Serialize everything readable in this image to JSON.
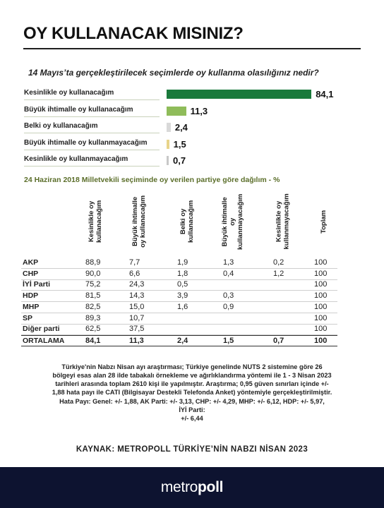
{
  "header": {
    "title": "OY KULLANACAK MISINIZ?",
    "question": "14 Mayıs’ta gerçekleştirilecek seçimlerde oy kullanma olasılığınız nedir?",
    "table_subtitle": "24 Haziran 2018 Milletvekili seçiminde oy verilen partiye göre dağılım - %"
  },
  "chart_data": [
    {
      "type": "bar",
      "orientation": "horizontal",
      "title": "14 Mayıs’ta gerçekleştirilecek seçimlerde oy kullanma olasılığınız nedir?",
      "categories": [
        "Kesinlikle oy kullanacağım",
        "Büyük ihtimalle oy kullanacağım",
        "Belki oy kullanacağım",
        "Büyük ihtimalle oy kullanmayacağım",
        "Kesinlikle oy kullanmayacağım"
      ],
      "values": [
        84.1,
        11.3,
        2.4,
        1.5,
        0.7
      ],
      "value_labels": [
        "84,1",
        "11,3",
        "2,4",
        "1,5",
        "0,7"
      ],
      "colors": [
        "#1a7a3c",
        "#8fbc5a",
        "#d9d9d9",
        "#e8d48a",
        "#c8c8c8"
      ],
      "xlim": [
        0,
        100
      ],
      "grid": false,
      "legend": "none"
    },
    {
      "type": "table",
      "title": "24 Haziran 2018 Milletvekili seçiminde oy verilen partiye göre dağılım - %",
      "columns": [
        "Kesinlikle oy kullanacağım",
        "Büyük ihtimalle oy kullanacağım",
        "Belki oy kullanacağım",
        "Büyük ihtimalle oy kullanmayacağım",
        "Kesinlikle oy kullanmayacağım",
        "Toplam"
      ],
      "column_headers": [
        [
          "Kesinlikle oy",
          "kullanacağım"
        ],
        [
          "Büyük ihtimalle",
          "oy kullanacağım"
        ],
        [
          "Belki oy",
          "kullanacağım"
        ],
        [
          "Büyük ihtimalle",
          "oy",
          "kullanmayacağım"
        ],
        [
          "Kesinlikle oy",
          "kullanmayacağım"
        ],
        [
          "Toplam"
        ]
      ],
      "rows": [
        {
          "party": "AKP",
          "values": [
            "88,9",
            "7,7",
            "1,9",
            "1,3",
            "0,2",
            "100"
          ]
        },
        {
          "party": "CHP",
          "values": [
            "90,0",
            "6,6",
            "1,8",
            "0,4",
            "1,2",
            "100"
          ]
        },
        {
          "party": "İYİ Parti",
          "values": [
            "75,2",
            "24,3",
            "0,5",
            "",
            "",
            "100"
          ]
        },
        {
          "party": "HDP",
          "values": [
            "81,5",
            "14,3",
            "3,9",
            "0,3",
            "",
            "100"
          ]
        },
        {
          "party": "MHP",
          "values": [
            "82,5",
            "15,0",
            "1,6",
            "0,9",
            "",
            "100"
          ]
        },
        {
          "party": "SP",
          "values": [
            "89,3",
            "10,7",
            "",
            "",
            "",
            "100"
          ]
        },
        {
          "party": "Diğer parti",
          "values": [
            "62,5",
            "37,5",
            "",
            "",
            "",
            "100"
          ]
        }
      ],
      "total_row": {
        "party": "ORTALAMA",
        "values": [
          "84,1",
          "11,3",
          "2,4",
          "1,5",
          "0,7",
          "100"
        ]
      }
    }
  ],
  "notes": {
    "lines": [
      "Türkiye'nin Nabzı Nisan ayı araştırması; Türkiye genelinde NUTS 2 sistemine göre 26",
      "bölgeyi esas alan 28 ilde tabakalı örnekleme ve ağırlıklandırma yöntemi ile 1 - 3 Nisan 2023",
      "tarihleri arasında toplam 2610 kişi ile yapılmıştır. Araştırma; 0,95 güven sınırları içinde +/-",
      "1,88 hata payı ile CATI (Bilgisayar Destekli Telefonda Anket) yöntemiyle gerçekleştirilmiştir.",
      "Hata Payı: Genel: +/- 1,88, AK Parti: +/- 3,13, CHP: +/- 4,29, MHP: +/- 6,12, HDP: +/- 5,97,",
      "İYİ Parti:",
      "+/- 6,44"
    ]
  },
  "source": "KAYNAK: METROPOLL TÜRKİYE’NİN NABZI NİSAN 2023",
  "footer": {
    "logo_light": "metro",
    "logo_bold": "poll",
    "background": "#0d1330"
  }
}
